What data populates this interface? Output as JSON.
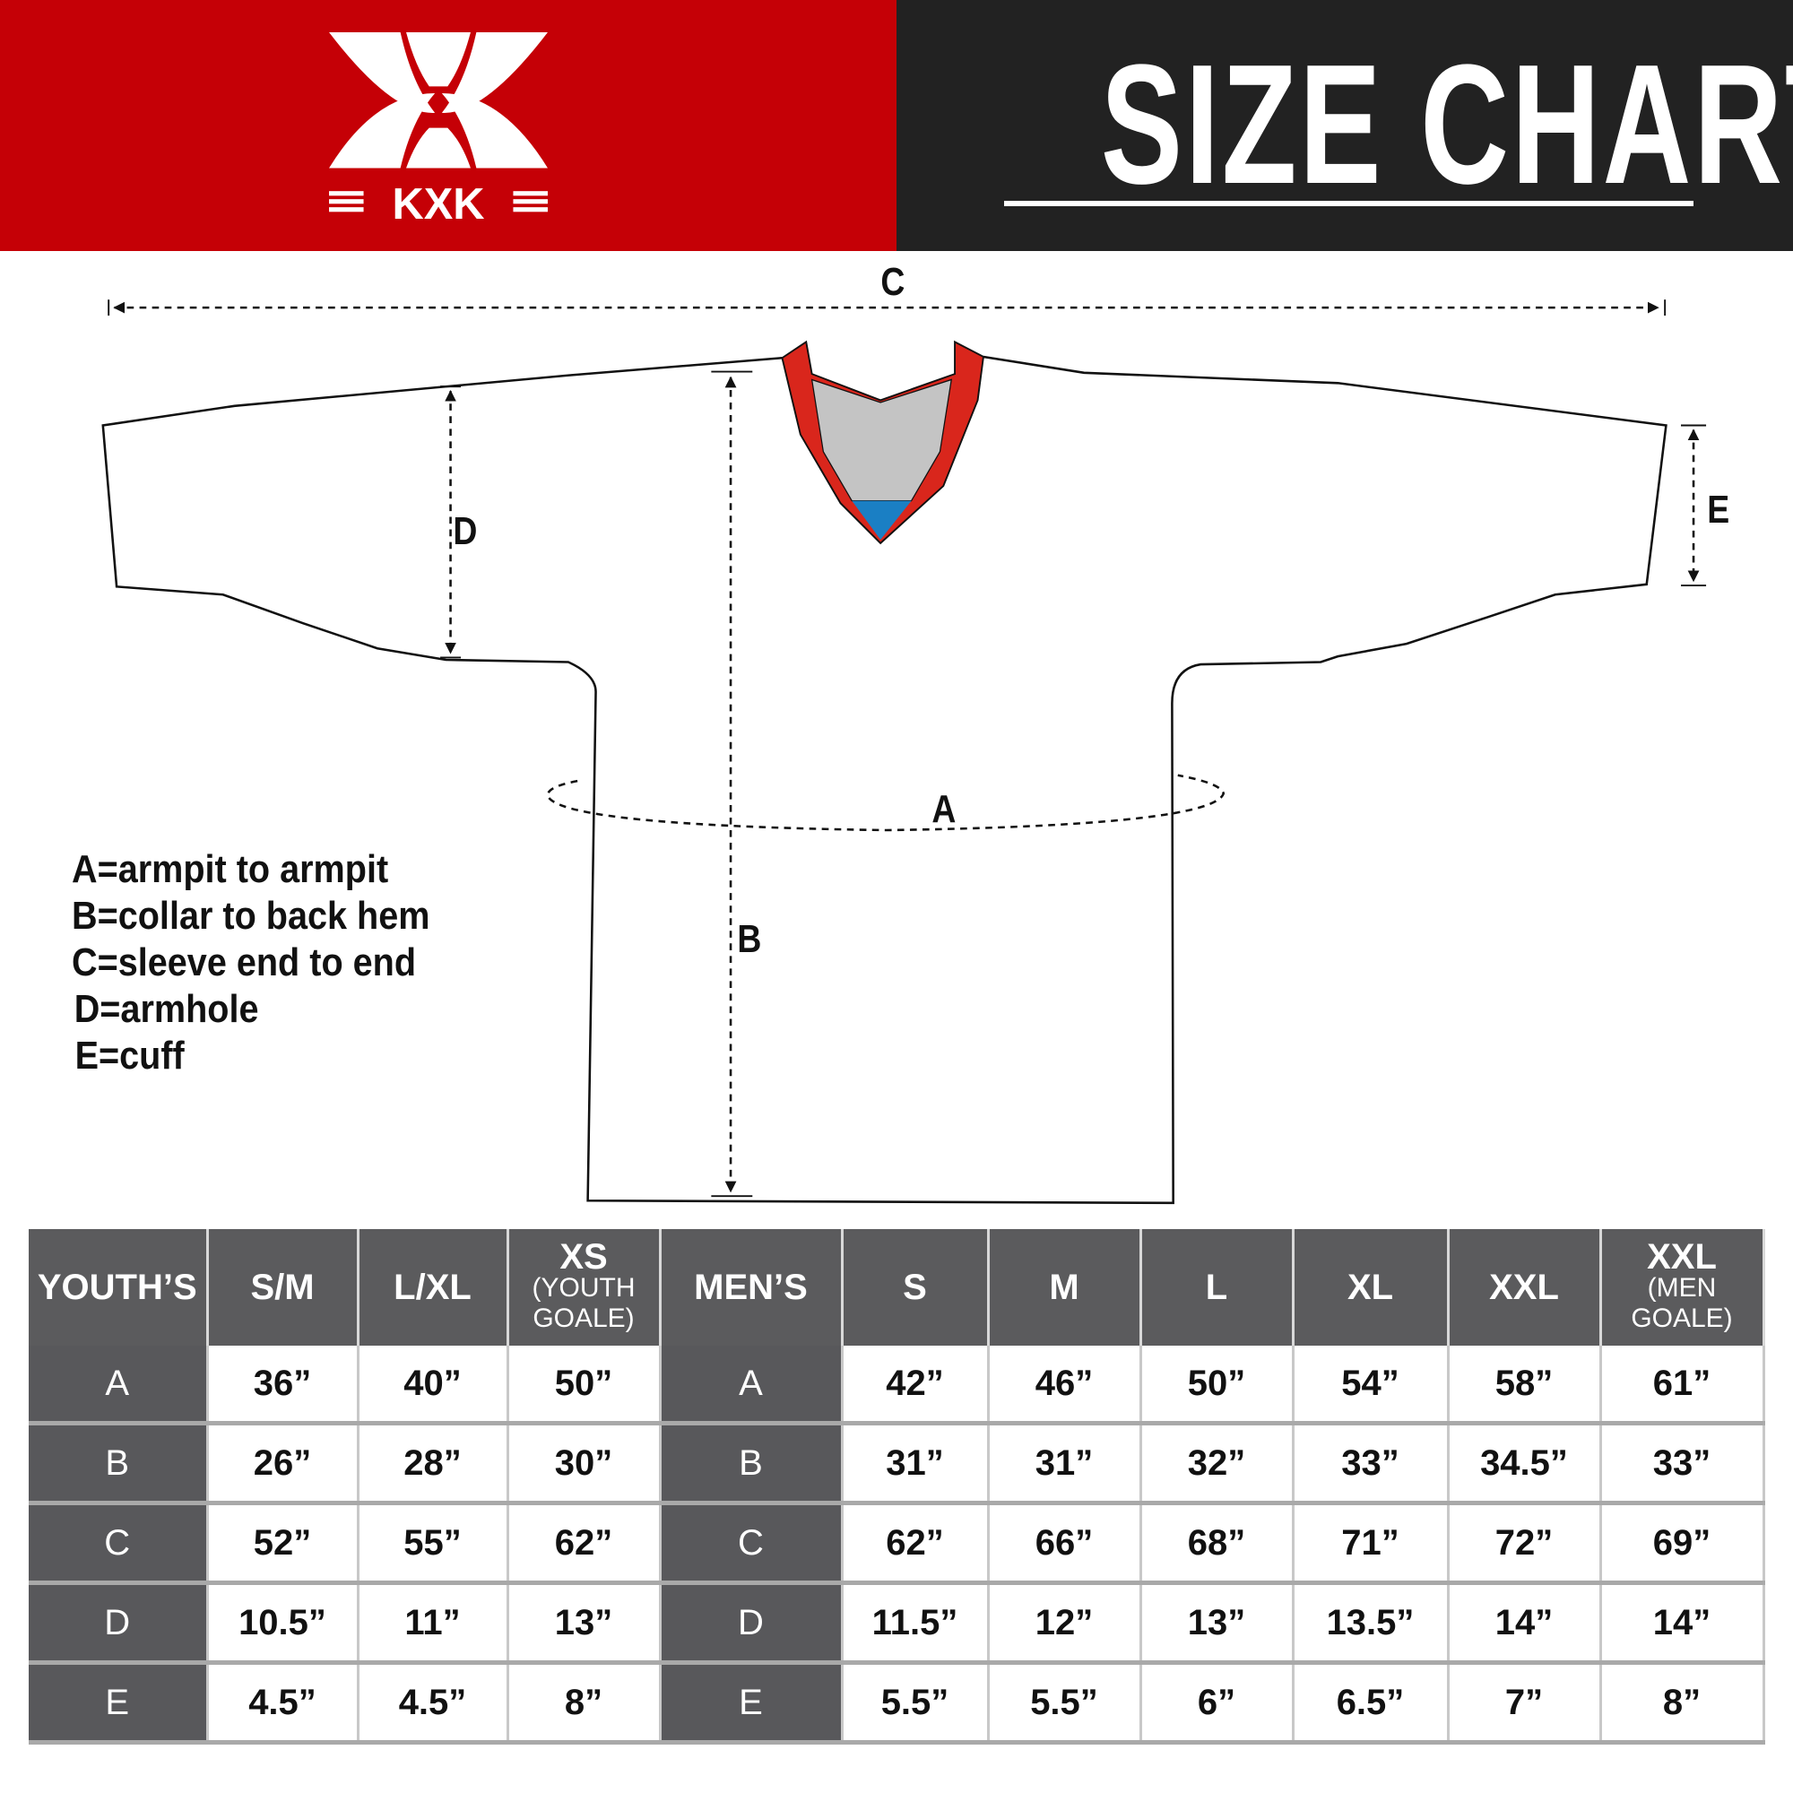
{
  "brand": {
    "logo_text": "KXK",
    "color_red": "#c50006",
    "color_dark": "#222222"
  },
  "header": {
    "title": "SIZE CHART"
  },
  "diagram": {
    "labels": {
      "A": "A",
      "B": "B",
      "C": "C",
      "D": "D",
      "E": "E"
    },
    "collar_colors": {
      "trim": "#d9261c",
      "inner": "#c4c4c4",
      "tip": "#1a7fc4"
    }
  },
  "legend": [
    "A=armpit to armpit",
    "B=collar to back hem",
    "C=sleeve end to end",
    "D=armhole",
    "E=cuff"
  ],
  "table": {
    "headers": [
      {
        "label": "YOUTH’S"
      },
      {
        "label": "S/M"
      },
      {
        "label": "L/XL"
      },
      {
        "label": "XS",
        "sub": "(YOUTH GOALE)"
      },
      {
        "label": "MEN’S"
      },
      {
        "label": "S"
      },
      {
        "label": "M"
      },
      {
        "label": "L"
      },
      {
        "label": "XL"
      },
      {
        "label": "XXL"
      },
      {
        "label": "XXL",
        "sub": "(MEN GOALE)"
      }
    ],
    "rows": [
      [
        "A",
        "36”",
        "40”",
        "50”",
        "A",
        "42”",
        "46”",
        "50”",
        "54”",
        "58”",
        "61”"
      ],
      [
        "B",
        "26”",
        "28”",
        "30”",
        "B",
        "31”",
        "31”",
        "32”",
        "33”",
        "34.5”",
        "33”"
      ],
      [
        "C",
        "52”",
        "55”",
        "62”",
        "C",
        "62”",
        "66”",
        "68”",
        "71”",
        "72”",
        "69”"
      ],
      [
        "D",
        "10.5”",
        "11”",
        "13”",
        "D",
        "11.5”",
        "12”",
        "13”",
        "13.5”",
        "14”",
        "14”"
      ],
      [
        "E",
        "4.5”",
        "4.5”",
        "8”",
        "E",
        "5.5”",
        "5.5”",
        "6”",
        "6.5”",
        "7”",
        "8”"
      ]
    ]
  }
}
